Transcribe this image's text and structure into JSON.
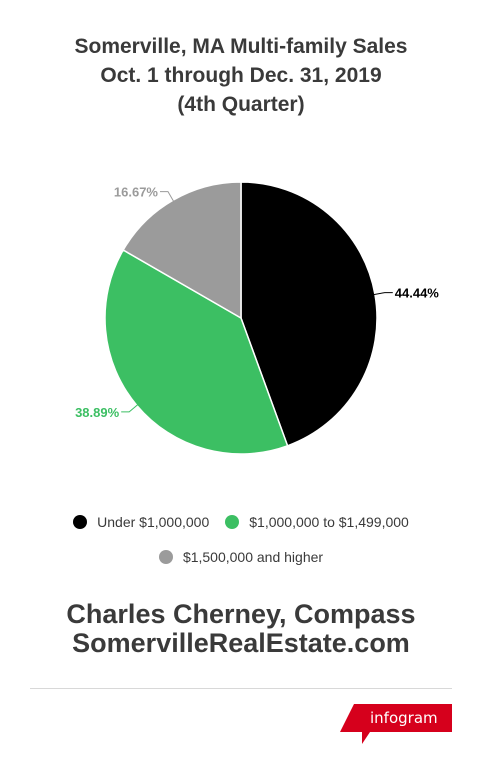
{
  "title": {
    "line1": "Somerville, MA Multi-family Sales",
    "line2": "Oct. 1 through Dec. 31, 2019",
    "line3": "(4th Quarter)"
  },
  "chart_data": {
    "type": "pie",
    "title": "Somerville, MA Multi-family Sales Oct. 1 through Dec. 31, 2019 (4th Quarter)",
    "categories": [
      "Under $1,000,000",
      "$1,000,000 to $1,499,000",
      "$1,500,000 and higher"
    ],
    "values": [
      44.44,
      38.89,
      16.67
    ],
    "labels": [
      "44.44%",
      "38.89%",
      "16.67%"
    ],
    "colors": [
      "#000000",
      "#3cbf63",
      "#9b9b9b"
    ],
    "label_colors": [
      "#000000",
      "#3cbf63",
      "#9b9b9b"
    ],
    "legend_position": "bottom"
  },
  "footer": {
    "line1": "Charles Cherney, Compass",
    "line2": "SomervilleRealEstate.com"
  },
  "branding": {
    "label": "infogram",
    "color": "#d6001c"
  }
}
